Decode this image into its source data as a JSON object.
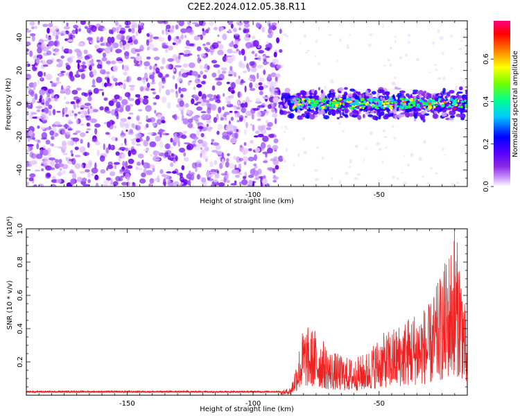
{
  "title": "C2E2.2024.012.05.38.R11",
  "chart_data": [
    {
      "type": "heatmap",
      "xlabel": "Height of straight line (km)",
      "ylabel": "Frequency (Hz)",
      "xlim": [
        -190,
        -15
      ],
      "ylim": [
        -50,
        50
      ],
      "xticks": [
        -150,
        -100,
        -50
      ],
      "yticks": [
        -40,
        -20,
        0,
        20,
        40
      ],
      "regions": [
        {
          "x_range": [
            -190,
            -89
          ],
          "f_range": [
            -50,
            50
          ],
          "normalized_amplitude": 0.08
        },
        {
          "x_range": [
            -89,
            -15
          ],
          "f_range": [
            -8,
            8
          ],
          "normalized_amplitude": 0.25,
          "peak_at_x": -20,
          "peak_value": 0.75
        }
      ],
      "colorbar": {
        "label": "Normalized spectral amplitude",
        "ticks": [
          0.0,
          0.2,
          0.4,
          0.6
        ],
        "range": [
          0,
          0.78
        ],
        "colors": [
          "#ffffff",
          "#cf9bff",
          "#8a2be2",
          "#5a00ff",
          "#0000ff",
          "#00c8ff",
          "#00ff90",
          "#70ff00",
          "#ffff00",
          "#ff8000",
          "#ff0000",
          "#ff0080"
        ]
      }
    },
    {
      "type": "line",
      "xlabel": "Height of straight line (km)",
      "ylabel": "SNR (10 * v/v)",
      "multiplier": "(x10⁴)",
      "xlim": [
        -190,
        -15
      ],
      "ylim": [
        0,
        1.0
      ],
      "xticks": [
        -150,
        -100,
        -50
      ],
      "yticks": [
        0.2,
        0.4,
        0.6,
        0.8,
        1.0
      ],
      "color": "#ee2222",
      "envelope": [
        {
          "x": -190,
          "y": 0.02
        },
        {
          "x": -120,
          "y": 0.02
        },
        {
          "x": -90,
          "y": 0.02
        },
        {
          "x": -85,
          "y": 0.05
        },
        {
          "x": -80,
          "y": 0.42
        },
        {
          "x": -75,
          "y": 0.4
        },
        {
          "x": -70,
          "y": 0.28
        },
        {
          "x": -65,
          "y": 0.24
        },
        {
          "x": -60,
          "y": 0.22
        },
        {
          "x": -55,
          "y": 0.26
        },
        {
          "x": -50,
          "y": 0.36
        },
        {
          "x": -45,
          "y": 0.4
        },
        {
          "x": -40,
          "y": 0.46
        },
        {
          "x": -35,
          "y": 0.52
        },
        {
          "x": -30,
          "y": 0.55
        },
        {
          "x": -25,
          "y": 0.75
        },
        {
          "x": -20,
          "y": 1.0
        },
        {
          "x": -17,
          "y": 0.8
        },
        {
          "x": -15,
          "y": 0.3
        }
      ]
    }
  ]
}
